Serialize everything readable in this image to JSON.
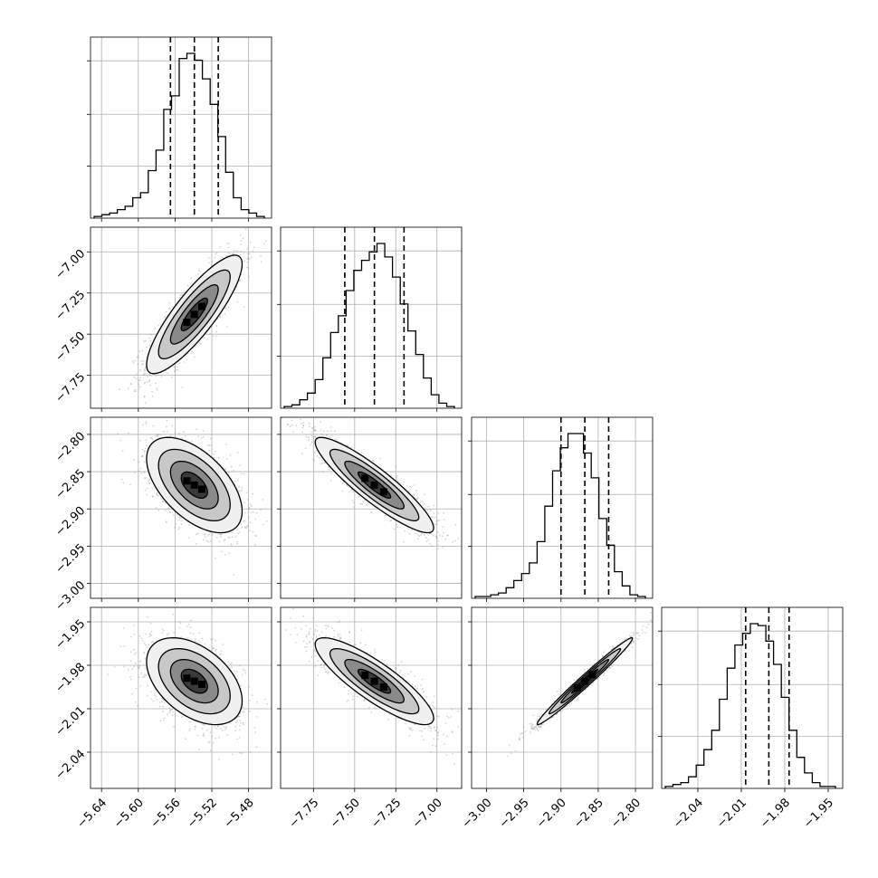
{
  "chart_data": {
    "type": "corner",
    "parameters": [
      {
        "range": [
          -5.652,
          -5.455
        ],
        "ticks": [
          -5.64,
          -5.6,
          -5.56,
          -5.52,
          -5.48
        ],
        "tick_labels": [
          "−5.64",
          "−5.60",
          "−5.56",
          "−5.52",
          "−5.48"
        ],
        "quantiles": [
          -5.565,
          -5.539,
          -5.513
        ],
        "histogram": [
          1,
          2,
          3,
          5,
          7,
          12,
          15,
          28,
          40,
          64,
          72,
          94,
          97,
          93,
          82,
          67,
          48,
          27,
          12,
          5,
          3,
          1
        ]
      },
      {
        "range": [
          -7.95,
          -6.85
        ],
        "ticks": [
          -7.75,
          -7.5,
          -7.25,
          -7.0
        ],
        "tick_labels": [
          "−7.75",
          "−7.50",
          "−7.25",
          "−7.00"
        ],
        "quantiles": [
          -7.56,
          -7.38,
          -7.2
        ],
        "histogram": [
          1,
          2,
          5,
          9,
          17,
          30,
          45,
          55,
          70,
          82,
          88,
          93,
          98,
          90,
          78,
          62,
          46,
          32,
          18,
          8,
          3,
          1
        ]
      },
      {
        "range": [
          -3.02,
          -2.777
        ],
        "ticks": [
          -3.0,
          -2.95,
          -2.9,
          -2.85,
          -2.8
        ],
        "tick_labels": [
          "−3.00",
          "−2.95",
          "−2.90",
          "−2.85",
          "−2.80"
        ],
        "quantiles": [
          -2.9,
          -2.868,
          -2.836
        ],
        "histogram": [
          1,
          1,
          2,
          3,
          6,
          10,
          14,
          20,
          32,
          52,
          72,
          85,
          93,
          93,
          82,
          68,
          45,
          30,
          15,
          7,
          2,
          1
        ]
      },
      {
        "range": [
          -2.065,
          -1.94
        ],
        "ticks": [
          -2.04,
          -2.01,
          -1.98,
          -1.95
        ],
        "tick_labels": [
          "−2.04",
          "−2.01",
          "−1.98",
          "−1.95"
        ],
        "quantiles": [
          -2.007,
          -1.991,
          -1.977
        ],
        "histogram": [
          1,
          2,
          3,
          6,
          12,
          20,
          30,
          46,
          62,
          74,
          80,
          85,
          84,
          76,
          64,
          47,
          30,
          16,
          8,
          3,
          1,
          1
        ]
      }
    ],
    "pairs": [
      {
        "row": 1,
        "col": 0,
        "correlation": 0.85
      },
      {
        "row": 2,
        "col": 0,
        "correlation": -0.55
      },
      {
        "row": 3,
        "col": 0,
        "correlation": -0.45
      },
      {
        "row": 2,
        "col": 1,
        "correlation": -0.9
      },
      {
        "row": 3,
        "col": 1,
        "correlation": -0.85
      },
      {
        "row": 3,
        "col": 2,
        "correlation": 0.985
      }
    ],
    "grid": true,
    "style": {
      "line": "#000000",
      "grid": "#b0b0b0",
      "points": "#888888"
    }
  }
}
